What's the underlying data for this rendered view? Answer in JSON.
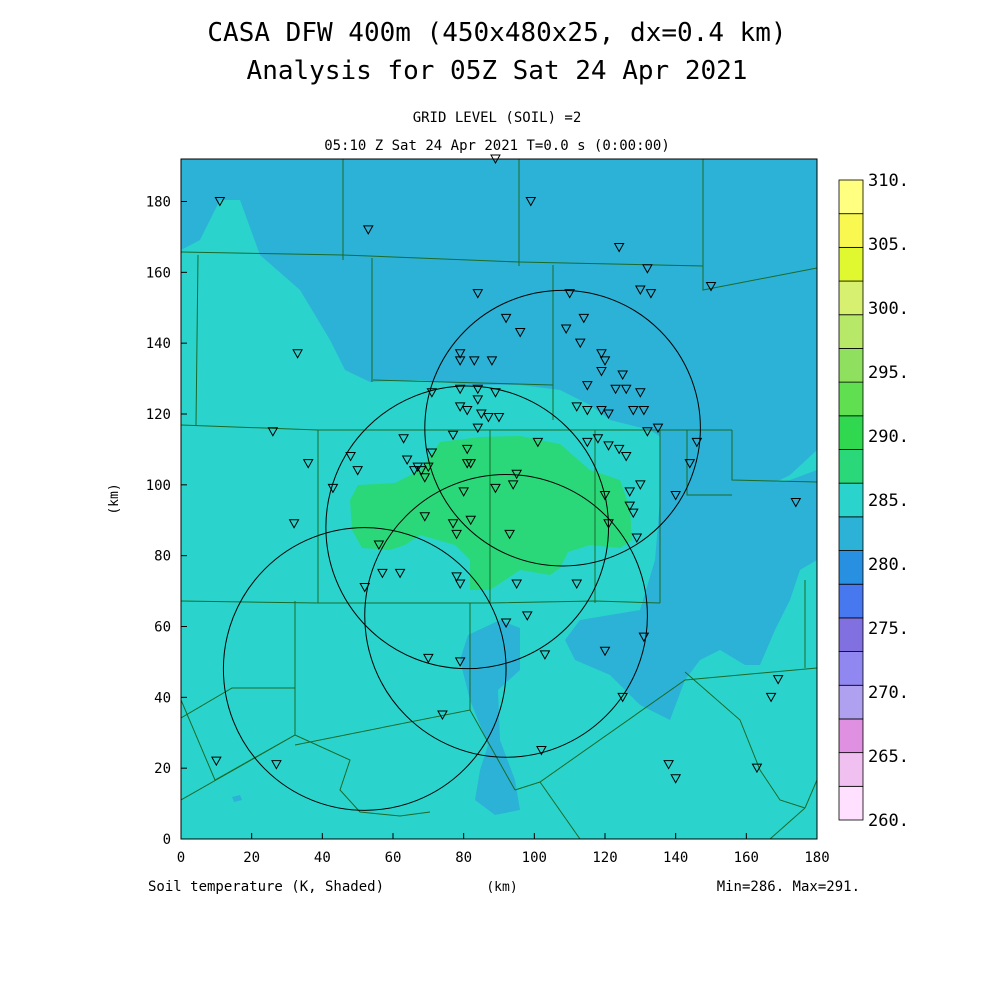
{
  "chart_data": {
    "type": "heatmap",
    "title_line1": "CASA DFW 400m (450x480x25, dx=0.4 km)",
    "title_line2": "Analysis for 05Z Sat 24 Apr 2021",
    "subtitle_line1": "GRID LEVEL (SOIL) =2",
    "subtitle_line2": "05:10 Z Sat 24 Apr 2021   T=0.0 s (0:00:00)",
    "xlabel": "(km)",
    "ylabel": "(km)",
    "field_label": "Soil temperature (K, Shaded)",
    "minmax_label": "Min=286. Max=291.",
    "xlim": [
      0,
      180
    ],
    "ylim": [
      0,
      192
    ],
    "x_ticks": [
      "0",
      "20",
      "40",
      "60",
      "80",
      "100",
      "120",
      "140",
      "160",
      "180"
    ],
    "y_ticks": [
      "0",
      "20",
      "40",
      "60",
      "80",
      "100",
      "120",
      "140",
      "160",
      "180"
    ],
    "colorbar": {
      "labels": [
        "260.",
        "265.",
        "270.",
        "275.",
        "280.",
        "285.",
        "290.",
        "295.",
        "300.",
        "305.",
        "310."
      ],
      "colors": [
        "#ffe0ff",
        "#f0c0f0",
        "#e090e0",
        "#b0a0f0",
        "#9088f0",
        "#8070e0",
        "#4878f0",
        "#2890e0",
        "#2cb2d6",
        "#2ad4cc",
        "#2ad87a",
        "#30d850",
        "#60e050",
        "#90e060",
        "#b8e868",
        "#d8f070",
        "#e0f830",
        "#f8f850",
        "#ffff80"
      ]
    },
    "regions": {
      "background": {
        "value": "288-290",
        "color": "#2ad4cc"
      },
      "cool": {
        "value": "285-288",
        "color": "#2cb2d6"
      },
      "warm": {
        "value": "290-291",
        "color": "#2ad87a"
      }
    },
    "radar_rings": [
      {
        "cx": 108,
        "cy": 116,
        "r": 39
      },
      {
        "cx": 81,
        "cy": 88,
        "r": 40
      },
      {
        "cx": 92,
        "cy": 63,
        "r": 40
      },
      {
        "cx": 52,
        "cy": 48,
        "r": 40
      }
    ],
    "stations": [
      [
        11,
        180
      ],
      [
        53,
        172
      ],
      [
        89,
        192
      ],
      [
        99,
        180
      ],
      [
        124,
        167
      ],
      [
        132,
        161
      ],
      [
        130,
        155
      ],
      [
        133,
        154
      ],
      [
        150,
        156
      ],
      [
        84,
        154
      ],
      [
        110,
        154
      ],
      [
        33,
        137
      ],
      [
        92,
        147
      ],
      [
        96,
        143
      ],
      [
        109,
        144
      ],
      [
        114,
        147
      ],
      [
        113,
        140
      ],
      [
        119,
        137
      ],
      [
        120,
        135
      ],
      [
        119,
        132
      ],
      [
        125,
        131
      ],
      [
        71,
        126
      ],
      [
        79,
        127
      ],
      [
        79,
        137
      ],
      [
        79,
        135
      ],
      [
        83,
        135
      ],
      [
        88,
        135
      ],
      [
        84,
        127
      ],
      [
        89,
        126
      ],
      [
        79,
        122
      ],
      [
        81,
        121
      ],
      [
        84,
        124
      ],
      [
        85,
        120
      ],
      [
        87,
        119
      ],
      [
        90,
        119
      ],
      [
        84,
        116
      ],
      [
        77,
        114
      ],
      [
        115,
        128
      ],
      [
        123,
        127
      ],
      [
        126,
        127
      ],
      [
        130,
        126
      ],
      [
        112,
        122
      ],
      [
        115,
        121
      ],
      [
        119,
        121
      ],
      [
        121,
        120
      ],
      [
        128,
        121
      ],
      [
        131,
        121
      ],
      [
        132,
        115
      ],
      [
        135,
        116
      ],
      [
        26,
        115
      ],
      [
        36,
        106
      ],
      [
        63,
        113
      ],
      [
        48,
        108
      ],
      [
        50,
        104
      ],
      [
        43,
        99
      ],
      [
        64,
        107
      ],
      [
        71,
        109
      ],
      [
        70,
        105
      ],
      [
        66,
        104
      ],
      [
        67,
        105
      ],
      [
        68,
        104
      ],
      [
        69,
        102
      ],
      [
        81,
        110
      ],
      [
        81,
        106
      ],
      [
        82,
        106
      ],
      [
        80,
        98
      ],
      [
        89,
        99
      ],
      [
        95,
        103
      ],
      [
        94,
        100
      ],
      [
        101,
        112
      ],
      [
        115,
        112
      ],
      [
        118,
        113
      ],
      [
        121,
        111
      ],
      [
        124,
        110
      ],
      [
        126,
        108
      ],
      [
        146,
        112
      ],
      [
        144,
        106
      ],
      [
        120,
        97
      ],
      [
        127,
        98
      ],
      [
        127,
        94
      ],
      [
        128,
        92
      ],
      [
        130,
        100
      ],
      [
        140,
        97
      ],
      [
        174,
        95
      ],
      [
        32,
        89
      ],
      [
        69,
        91
      ],
      [
        77,
        89
      ],
      [
        78,
        86
      ],
      [
        82,
        90
      ],
      [
        93,
        86
      ],
      [
        121,
        89
      ],
      [
        129,
        85
      ],
      [
        56,
        83
      ],
      [
        57,
        75
      ],
      [
        62,
        75
      ],
      [
        52,
        71
      ],
      [
        78,
        74
      ],
      [
        79,
        72
      ],
      [
        95,
        72
      ],
      [
        112,
        72
      ],
      [
        98,
        63
      ],
      [
        92,
        61
      ],
      [
        131,
        57
      ],
      [
        120,
        53
      ],
      [
        103,
        52
      ],
      [
        70,
        51
      ],
      [
        79,
        50
      ],
      [
        74,
        35
      ],
      [
        125,
        40
      ],
      [
        167,
        40
      ],
      [
        169,
        45
      ],
      [
        10,
        22
      ],
      [
        27,
        21
      ],
      [
        102,
        25
      ],
      [
        138,
        21
      ],
      [
        140,
        17
      ],
      [
        163,
        20
      ]
    ]
  }
}
